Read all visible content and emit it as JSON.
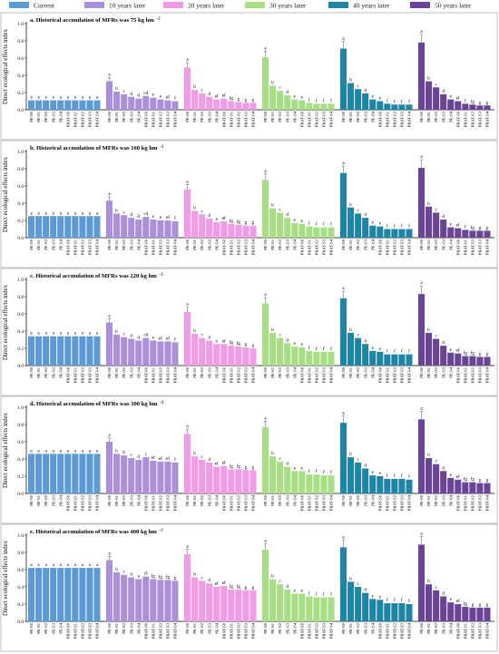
{
  "legend": [
    {
      "label": "Current",
      "color": "#5b9bd5"
    },
    {
      "label": "10 years later",
      "color": "#a98fdc"
    },
    {
      "label": "20 years later",
      "color": "#f39ae6"
    },
    {
      "label": "30 years later",
      "color": "#a6df85"
    },
    {
      "label": "40 years later",
      "color": "#1c86a4"
    },
    {
      "label": "50 years later",
      "color": "#6a4496"
    }
  ],
  "chart_data": {
    "type": "bar",
    "ylabel": "Direct ecological effects index",
    "ylim": [
      0,
      1.0
    ],
    "yticks": [
      "0.0",
      "0.2",
      "0.4",
      "0.6",
      "0.8",
      "1.0"
    ],
    "categories": [
      "PE-S0",
      "PE-S1",
      "PE-S2",
      "PE-S3",
      "PE-S4",
      "PBAT-S0",
      "PBAT-S1",
      "PBAT-S2",
      "PBAT-S3",
      "PBAT-S4"
    ],
    "panels": [
      {
        "title": "a. Historical accmulation of MFRs was 75 kg hm",
        "title_sup": "−2",
        "series": [
          {
            "name": "Current",
            "values": [
              0.11,
              0.11,
              0.11,
              0.11,
              0.11,
              0.11,
              0.11,
              0.11,
              0.11,
              0.11
            ],
            "letters": [
              "a",
              "a",
              "a",
              "a",
              "a",
              "a",
              "a",
              "a",
              "a",
              "a"
            ]
          },
          {
            "name": "10 years later",
            "values": [
              0.33,
              0.21,
              0.18,
              0.15,
              0.13,
              0.16,
              0.14,
              0.12,
              0.11,
              0.1
            ],
            "letters": [
              "a",
              "b",
              "c",
              "d",
              "d",
              "cd",
              "e",
              "e",
              "ef",
              "f"
            ]
          },
          {
            "name": "20 years later",
            "values": [
              0.49,
              0.23,
              0.19,
              0.15,
              0.12,
              0.13,
              0.1,
              0.09,
              0.08,
              0.08
            ],
            "letters": [
              "a",
              "b",
              "c",
              "d",
              "ef",
              "ef",
              "fg",
              "g",
              "g",
              "g"
            ]
          },
          {
            "name": "30 years later",
            "values": [
              0.61,
              0.28,
              0.22,
              0.17,
              0.12,
              0.11,
              0.08,
              0.07,
              0.07,
              0.07
            ],
            "letters": [
              "a",
              "b",
              "c",
              "d",
              "e",
              "e",
              "f",
              "f",
              "f",
              "f"
            ]
          },
          {
            "name": "40 years later",
            "values": [
              0.71,
              0.31,
              0.24,
              0.19,
              0.12,
              0.1,
              0.07,
              0.06,
              0.06,
              0.06
            ],
            "letters": [
              "a",
              "b",
              "c",
              "d",
              "e",
              "e",
              "f",
              "f",
              "f",
              "f"
            ]
          },
          {
            "name": "50 years later",
            "values": [
              0.78,
              0.33,
              0.26,
              0.18,
              0.12,
              0.1,
              0.07,
              0.06,
              0.05,
              0.05
            ],
            "letters": [
              "a",
              "b",
              "c",
              "d",
              "e",
              "ef",
              "f",
              "fg",
              "g",
              "g"
            ]
          }
        ]
      },
      {
        "title": "b. Historical accmulation of MFRs was 160 kg hm",
        "title_sup": "−2",
        "series": [
          {
            "name": "Current",
            "values": [
              0.25,
              0.25,
              0.25,
              0.25,
              0.25,
              0.25,
              0.25,
              0.25,
              0.25,
              0.25
            ],
            "letters": [
              "a",
              "a",
              "a",
              "a",
              "a",
              "a",
              "a",
              "a",
              "a",
              "a"
            ]
          },
          {
            "name": "10 years later",
            "values": [
              0.43,
              0.28,
              0.26,
              0.23,
              0.21,
              0.24,
              0.21,
              0.2,
              0.2,
              0.19
            ],
            "letters": [
              "a",
              "b",
              "c",
              "d",
              "d",
              "cd",
              "e",
              "e",
              "ef",
              "f"
            ]
          },
          {
            "name": "20 years later",
            "values": [
              0.56,
              0.31,
              0.27,
              0.22,
              0.18,
              0.19,
              0.16,
              0.15,
              0.14,
              0.14
            ],
            "letters": [
              "a",
              "b",
              "c",
              "d",
              "e",
              "ef",
              "fg",
              "fg",
              "g",
              "g"
            ]
          },
          {
            "name": "30 years later",
            "values": [
              0.67,
              0.34,
              0.29,
              0.23,
              0.17,
              0.16,
              0.13,
              0.12,
              0.12,
              0.12
            ],
            "letters": [
              "a",
              "b",
              "c",
              "d",
              "e",
              "e",
              "f",
              "f",
              "f",
              "f"
            ]
          },
          {
            "name": "40 years later",
            "values": [
              0.75,
              0.35,
              0.28,
              0.23,
              0.14,
              0.13,
              0.1,
              0.1,
              0.1,
              0.1
            ],
            "letters": [
              "a",
              "b",
              "c",
              "d",
              "e",
              "e",
              "f",
              "f",
              "f",
              "f"
            ]
          },
          {
            "name": "50 years later",
            "values": [
              0.81,
              0.36,
              0.29,
              0.21,
              0.12,
              0.11,
              0.09,
              0.08,
              0.08,
              0.08
            ],
            "letters": [
              "a",
              "b",
              "c",
              "d",
              "e",
              "ef",
              "f",
              "fg",
              "g",
              "g"
            ]
          }
        ]
      },
      {
        "title": "c. Historical accmulation of MFRs was 220 kg hm",
        "title_sup": "−2",
        "series": [
          {
            "name": "Current",
            "values": [
              0.34,
              0.34,
              0.34,
              0.34,
              0.34,
              0.34,
              0.34,
              0.34,
              0.34,
              0.34
            ],
            "letters": [
              "a",
              "a",
              "a",
              "a",
              "a",
              "a",
              "a",
              "a",
              "a",
              "a"
            ]
          },
          {
            "name": "10 years later",
            "values": [
              0.5,
              0.36,
              0.33,
              0.31,
              0.29,
              0.32,
              0.29,
              0.28,
              0.28,
              0.27
            ],
            "letters": [
              "a",
              "b",
              "c",
              "d",
              "d",
              "cd",
              "e",
              "ef",
              "ef",
              "f"
            ]
          },
          {
            "name": "20 years later",
            "values": [
              0.62,
              0.37,
              0.32,
              0.29,
              0.25,
              0.25,
              0.23,
              0.22,
              0.21,
              0.2
            ],
            "letters": [
              "a",
              "b",
              "c",
              "d",
              "e",
              "ef",
              "fg",
              "fg",
              "g",
              "g"
            ]
          },
          {
            "name": "30 years later",
            "values": [
              0.72,
              0.38,
              0.32,
              0.26,
              0.22,
              0.21,
              0.17,
              0.16,
              0.16,
              0.16
            ],
            "letters": [
              "a",
              "b",
              "c",
              "d",
              "e",
              "e",
              "f",
              "f",
              "f",
              "f"
            ]
          },
          {
            "name": "40 years later",
            "values": [
              0.78,
              0.38,
              0.32,
              0.25,
              0.17,
              0.16,
              0.13,
              0.13,
              0.13,
              0.13
            ],
            "letters": [
              "a",
              "b",
              "c",
              "d",
              "e",
              "e",
              "f",
              "f",
              "f",
              "f"
            ]
          },
          {
            "name": "50 years later",
            "values": [
              0.83,
              0.38,
              0.31,
              0.23,
              0.15,
              0.14,
              0.11,
              0.11,
              0.1,
              0.1
            ],
            "letters": [
              "a",
              "b",
              "c",
              "d",
              "e",
              "ef",
              "fg",
              "fg",
              "g",
              "g"
            ]
          }
        ]
      },
      {
        "title": "d. Historical accmulation of MFRs was 300 kg hm",
        "title_sup": "−2",
        "series": [
          {
            "name": "Current",
            "values": [
              0.46,
              0.46,
              0.46,
              0.46,
              0.46,
              0.46,
              0.46,
              0.46,
              0.46,
              0.46
            ],
            "letters": [
              "a",
              "a",
              "a",
              "a",
              "a",
              "a",
              "a",
              "a",
              "a",
              "a"
            ]
          },
          {
            "name": "10 years later",
            "values": [
              0.6,
              0.46,
              0.44,
              0.41,
              0.39,
              0.42,
              0.38,
              0.37,
              0.37,
              0.36
            ],
            "letters": [
              "a",
              "b",
              "b",
              "c",
              "d",
              "c",
              "ef",
              "ef",
              "ef",
              "f"
            ]
          },
          {
            "name": "20 years later",
            "values": [
              0.69,
              0.43,
              0.39,
              0.36,
              0.31,
              0.32,
              0.28,
              0.28,
              0.27,
              0.27
            ],
            "letters": [
              "a",
              "b",
              "c",
              "d",
              "ef",
              "ef",
              "fg",
              "fg",
              "g",
              "g"
            ]
          },
          {
            "name": "30 years later",
            "values": [
              0.77,
              0.43,
              0.37,
              0.31,
              0.26,
              0.26,
              0.22,
              0.22,
              0.21,
              0.21
            ],
            "letters": [
              "a",
              "b",
              "c",
              "d",
              "e",
              "e",
              "f",
              "f",
              "f",
              "f"
            ]
          },
          {
            "name": "40 years later",
            "values": [
              0.82,
              0.42,
              0.36,
              0.29,
              0.21,
              0.2,
              0.17,
              0.17,
              0.17,
              0.16
            ],
            "letters": [
              "a",
              "b",
              "c",
              "d",
              "e",
              "e",
              "f",
              "f",
              "f",
              "f"
            ]
          },
          {
            "name": "50 years later",
            "values": [
              0.86,
              0.41,
              0.34,
              0.26,
              0.18,
              0.16,
              0.13,
              0.13,
              0.12,
              0.12
            ],
            "letters": [
              "a",
              "b",
              "c",
              "d",
              "e",
              "ef",
              "fg",
              "fg",
              "g",
              "g"
            ]
          }
        ]
      },
      {
        "title": "e. Historical accmulation of MFRs was 400 kg hm",
        "title_sup": "−2",
        "series": [
          {
            "name": "Current",
            "values": [
              0.62,
              0.62,
              0.62,
              0.62,
              0.62,
              0.62,
              0.62,
              0.62,
              0.62,
              0.62
            ],
            "letters": [
              "a",
              "a",
              "a",
              "a",
              "a",
              "a",
              "a",
              "a",
              "a",
              "a"
            ]
          },
          {
            "name": "10 years later",
            "values": [
              0.71,
              0.57,
              0.54,
              0.51,
              0.49,
              0.52,
              0.49,
              0.48,
              0.48,
              0.47
            ],
            "letters": [
              "a",
              "b",
              "c",
              "d",
              "e",
              "cf",
              "fg",
              "fg",
              "fg",
              "g"
            ]
          },
          {
            "name": "20 years later",
            "values": [
              0.78,
              0.51,
              0.47,
              0.44,
              0.4,
              0.41,
              0.37,
              0.37,
              0.36,
              0.36
            ],
            "letters": [
              "a",
              "b",
              "c",
              "d",
              "ef",
              "ef",
              "fg",
              "fg",
              "g",
              "g"
            ]
          },
          {
            "name": "30 years later",
            "values": [
              0.83,
              0.49,
              0.43,
              0.37,
              0.32,
              0.32,
              0.29,
              0.28,
              0.28,
              0.28
            ],
            "letters": [
              "a",
              "b",
              "c",
              "d",
              "e",
              "e",
              "f",
              "f",
              "f",
              "f"
            ]
          },
          {
            "name": "40 years later",
            "values": [
              0.86,
              0.46,
              0.4,
              0.33,
              0.26,
              0.25,
              0.21,
              0.21,
              0.21,
              0.2
            ],
            "letters": [
              "a",
              "b",
              "c",
              "d",
              "e",
              "e",
              "f",
              "f",
              "f",
              "f"
            ]
          },
          {
            "name": "50 years later",
            "values": [
              0.89,
              0.43,
              0.36,
              0.29,
              0.22,
              0.2,
              0.17,
              0.16,
              0.16,
              0.16
            ],
            "letters": [
              "a",
              "b",
              "c",
              "d",
              "e",
              "ef",
              "fg",
              "g",
              "g",
              "g"
            ]
          }
        ]
      }
    ]
  }
}
